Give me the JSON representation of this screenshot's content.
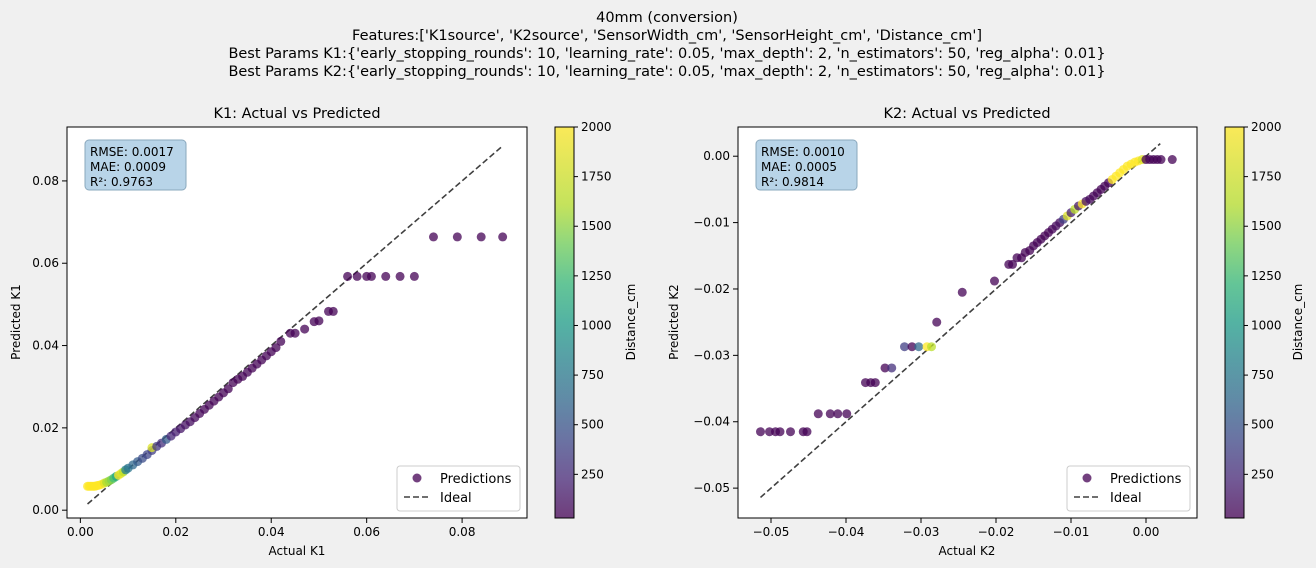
{
  "figure": {
    "title_lines": [
      "40mm (conversion)",
      "Features:['K1source', 'K2source', 'SensorWidth_cm', 'SensorHeight_cm', 'Distance_cm']",
      "Best Params K1:{'early_stopping_rounds': 10, 'learning_rate': 0.05, 'max_depth': 2, 'n_estimators': 50, 'reg_alpha': 0.01}",
      "Best Params K2:{'early_stopping_rounds': 10, 'learning_rate': 0.05, 'max_depth': 2, 'n_estimators': 50, 'reg_alpha': 0.01}"
    ]
  },
  "chart_data": [
    {
      "type": "scatter",
      "title": "K1: Actual vs Predicted",
      "xlabel": "Actual K1",
      "ylabel": "Predicted K1",
      "xlim": [
        -0.0028,
        0.0936
      ],
      "ylim": [
        -0.0019,
        0.0931
      ],
      "xticks": [
        0.0,
        0.02,
        0.04,
        0.06,
        0.08
      ],
      "xtick_labels": [
        "0.00",
        "0.02",
        "0.04",
        "0.06",
        "0.08"
      ],
      "yticks": [
        0.0,
        0.02,
        0.04,
        0.06,
        0.08
      ],
      "ytick_labels": [
        "0.00",
        "0.02",
        "0.04",
        "0.06",
        "0.08"
      ],
      "grid": false,
      "legend_position": "lower-right",
      "legend": [
        "Predictions",
        "Ideal"
      ],
      "metrics": [
        "RMSE: 0.0017",
        "MAE: 0.0009",
        "R²: 0.9763"
      ],
      "ideal_line": [
        [
          0.0015,
          0.0015
        ],
        [
          0.0886,
          0.0886
        ]
      ],
      "colorbar": {
        "label": "Distance_cm",
        "range": [
          30,
          2000
        ],
        "ticks": [
          250,
          500,
          750,
          1000,
          1250,
          1500,
          1750,
          2000
        ],
        "tick_labels": [
          "250",
          "500",
          "750",
          "1000",
          "1250",
          "1500",
          "1750",
          "2000"
        ]
      },
      "series": [
        {
          "name": "Predictions",
          "points": [
            [
              0.0015,
              0.0058,
              2000
            ],
            [
              0.0018,
              0.0058,
              2000
            ],
            [
              0.0021,
              0.0058,
              2000
            ],
            [
              0.0024,
              0.0058,
              2000
            ],
            [
              0.0027,
              0.0058,
              2000
            ],
            [
              0.003,
              0.0058,
              2000
            ],
            [
              0.0033,
              0.0059,
              2000
            ],
            [
              0.0036,
              0.006,
              2000
            ],
            [
              0.004,
              0.0061,
              2000
            ],
            [
              0.0045,
              0.0063,
              2000
            ],
            [
              0.005,
              0.0066,
              1900
            ],
            [
              0.0055,
              0.0068,
              1750
            ],
            [
              0.006,
              0.0071,
              1700
            ],
            [
              0.0065,
              0.0074,
              1600
            ],
            [
              0.007,
              0.0078,
              1400
            ],
            [
              0.0075,
              0.0082,
              1200
            ],
            [
              0.008,
              0.0085,
              2000
            ],
            [
              0.0085,
              0.0089,
              1900
            ],
            [
              0.009,
              0.0093,
              1800
            ],
            [
              0.0095,
              0.0098,
              900
            ],
            [
              0.01,
              0.0102,
              800
            ],
            [
              0.011,
              0.011,
              700
            ],
            [
              0.012,
              0.0118,
              600
            ],
            [
              0.013,
              0.0126,
              500
            ],
            [
              0.014,
              0.0135,
              450
            ],
            [
              0.015,
              0.0145,
              400
            ],
            [
              0.015,
              0.0152,
              1900
            ],
            [
              0.016,
              0.0155,
              350
            ],
            [
              0.017,
              0.0163,
              300
            ],
            [
              0.018,
              0.0172,
              600
            ],
            [
              0.019,
              0.018,
              250
            ],
            [
              0.02,
              0.019,
              200
            ],
            [
              0.021,
              0.0198,
              150
            ],
            [
              0.022,
              0.0207,
              120
            ],
            [
              0.023,
              0.0215,
              100
            ],
            [
              0.024,
              0.0225,
              80
            ],
            [
              0.025,
              0.0235,
              60
            ],
            [
              0.026,
              0.0245,
              50
            ],
            [
              0.027,
              0.0255,
              50
            ],
            [
              0.028,
              0.0265,
              40
            ],
            [
              0.029,
              0.0275,
              40
            ],
            [
              0.03,
              0.0285,
              40
            ],
            [
              0.031,
              0.0295,
              40
            ],
            [
              0.032,
              0.031,
              40
            ],
            [
              0.033,
              0.0318,
              40
            ],
            [
              0.034,
              0.0325,
              40
            ],
            [
              0.035,
              0.0335,
              40
            ],
            [
              0.036,
              0.0345,
              40
            ],
            [
              0.037,
              0.0355,
              40
            ],
            [
              0.038,
              0.0365,
              40
            ],
            [
              0.039,
              0.0375,
              40
            ],
            [
              0.04,
              0.0385,
              40
            ],
            [
              0.041,
              0.0395,
              40
            ],
            [
              0.042,
              0.041,
              40
            ],
            [
              0.044,
              0.043,
              40
            ],
            [
              0.045,
              0.043,
              40
            ],
            [
              0.047,
              0.044,
              40
            ],
            [
              0.049,
              0.0458,
              40
            ],
            [
              0.05,
              0.046,
              40
            ],
            [
              0.052,
              0.0483,
              40
            ],
            [
              0.053,
              0.0483,
              40
            ],
            [
              0.056,
              0.0568,
              40
            ],
            [
              0.058,
              0.0568,
              40
            ],
            [
              0.06,
              0.0568,
              40
            ],
            [
              0.061,
              0.0568,
              40
            ],
            [
              0.064,
              0.0568,
              40
            ],
            [
              0.067,
              0.0568,
              40
            ],
            [
              0.07,
              0.0568,
              40
            ],
            [
              0.074,
              0.0664,
              40
            ],
            [
              0.079,
              0.0664,
              40
            ],
            [
              0.084,
              0.0664,
              40
            ],
            [
              0.0885,
              0.0664,
              40
            ]
          ]
        }
      ]
    },
    {
      "type": "scatter",
      "title": "K2: Actual vs Predicted",
      "xlabel": "Actual K2",
      "ylabel": "Predicted K2",
      "xlim": [
        -0.0544,
        0.0068
      ],
      "ylim": [
        -0.0545,
        0.0044
      ],
      "xticks": [
        -0.05,
        -0.04,
        -0.03,
        -0.02,
        -0.01,
        0.0
      ],
      "xtick_labels": [
        "−0.05",
        "−0.04",
        "−0.03",
        "−0.02",
        "−0.01",
        "0.00"
      ],
      "yticks": [
        -0.05,
        -0.04,
        -0.03,
        -0.02,
        -0.01,
        0.0
      ],
      "ytick_labels": [
        "−0.05",
        "−0.04",
        "−0.03",
        "−0.02",
        "−0.01",
        "0.00"
      ],
      "grid": false,
      "legend_position": "lower-right",
      "legend": [
        "Predictions",
        "Ideal"
      ],
      "metrics": [
        "RMSE: 0.0010",
        "MAE: 0.0005",
        "R²: 0.9814"
      ],
      "ideal_line": [
        [
          -0.0514,
          -0.0514
        ],
        [
          0.0019,
          0.0019
        ]
      ],
      "colorbar": {
        "label": "Distance_cm",
        "range": [
          30,
          2000
        ],
        "ticks": [
          250,
          500,
          750,
          1000,
          1250,
          1500,
          1750,
          2000
        ],
        "tick_labels": [
          "250",
          "500",
          "750",
          "1000",
          "1250",
          "1500",
          "1750",
          "2000"
        ]
      },
      "series": [
        {
          "name": "Predictions",
          "points": [
            [
              -0.0514,
              -0.0415,
              40
            ],
            [
              -0.0502,
              -0.0415,
              40
            ],
            [
              -0.0494,
              -0.0415,
              40
            ],
            [
              -0.0488,
              -0.0415,
              40
            ],
            [
              -0.0474,
              -0.0415,
              40
            ],
            [
              -0.0457,
              -0.0415,
              40
            ],
            [
              -0.0452,
              -0.0415,
              40
            ],
            [
              -0.0437,
              -0.0388,
              40
            ],
            [
              -0.0421,
              -0.0388,
              40
            ],
            [
              -0.0411,
              -0.0388,
              40
            ],
            [
              -0.0399,
              -0.0388,
              40
            ],
            [
              -0.0374,
              -0.0341,
              40
            ],
            [
              -0.0367,
              -0.0341,
              40
            ],
            [
              -0.0361,
              -0.0341,
              40
            ],
            [
              -0.0348,
              -0.0319,
              40
            ],
            [
              -0.0339,
              -0.0319,
              300
            ],
            [
              -0.0322,
              -0.0287,
              400
            ],
            [
              -0.0312,
              -0.0287,
              40
            ],
            [
              -0.0303,
              -0.0287,
              700
            ],
            [
              -0.0292,
              -0.0287,
              2000
            ],
            [
              -0.0286,
              -0.0287,
              1800
            ],
            [
              -0.0279,
              -0.025,
              40
            ],
            [
              -0.0245,
              -0.0205,
              40
            ],
            [
              -0.0202,
              -0.0188,
              40
            ],
            [
              -0.0183,
              -0.0163,
              40
            ],
            [
              -0.0178,
              -0.0163,
              40
            ],
            [
              -0.0172,
              -0.0153,
              40
            ],
            [
              -0.0166,
              -0.0153,
              40
            ],
            [
              -0.0161,
              -0.0145,
              40
            ],
            [
              -0.0155,
              -0.0142,
              40
            ],
            [
              -0.015,
              -0.0135,
              40
            ],
            [
              -0.0145,
              -0.013,
              40
            ],
            [
              -0.014,
              -0.0125,
              40
            ],
            [
              -0.0135,
              -0.012,
              40
            ],
            [
              -0.013,
              -0.0115,
              40
            ],
            [
              -0.0125,
              -0.011,
              60
            ],
            [
              -0.012,
              -0.0105,
              80
            ],
            [
              -0.0115,
              -0.01,
              100
            ],
            [
              -0.011,
              -0.0095,
              400
            ],
            [
              -0.0105,
              -0.009,
              1900
            ],
            [
              -0.01,
              -0.0085,
              200
            ],
            [
              -0.0095,
              -0.008,
              1800
            ],
            [
              -0.009,
              -0.0075,
              150
            ],
            [
              -0.0085,
              -0.0072,
              2000
            ],
            [
              -0.008,
              -0.0068,
              100
            ],
            [
              -0.0075,
              -0.0065,
              80
            ],
            [
              -0.007,
              -0.006,
              60
            ],
            [
              -0.0065,
              -0.0055,
              50
            ],
            [
              -0.006,
              -0.005,
              40
            ],
            [
              -0.0055,
              -0.0045,
              40
            ],
            [
              -0.005,
              -0.004,
              40
            ],
            [
              -0.0045,
              -0.0035,
              2000
            ],
            [
              -0.004,
              -0.003,
              2000
            ],
            [
              -0.0035,
              -0.0025,
              2000
            ],
            [
              -0.003,
              -0.002,
              2000
            ],
            [
              -0.0025,
              -0.0015,
              2000
            ],
            [
              -0.002,
              -0.0012,
              2000
            ],
            [
              -0.0015,
              -0.0009,
              2000
            ],
            [
              -0.001,
              -0.0007,
              2000
            ],
            [
              -0.0005,
              -0.0005,
              1900
            ],
            [
              0.0,
              -0.0005,
              40
            ],
            [
              0.0005,
              -0.0005,
              40
            ],
            [
              0.001,
              -0.0005,
              40
            ],
            [
              0.0015,
              -0.0005,
              40
            ],
            [
              0.002,
              -0.0005,
              40
            ],
            [
              0.0035,
              -0.0005,
              40
            ]
          ]
        }
      ]
    }
  ]
}
